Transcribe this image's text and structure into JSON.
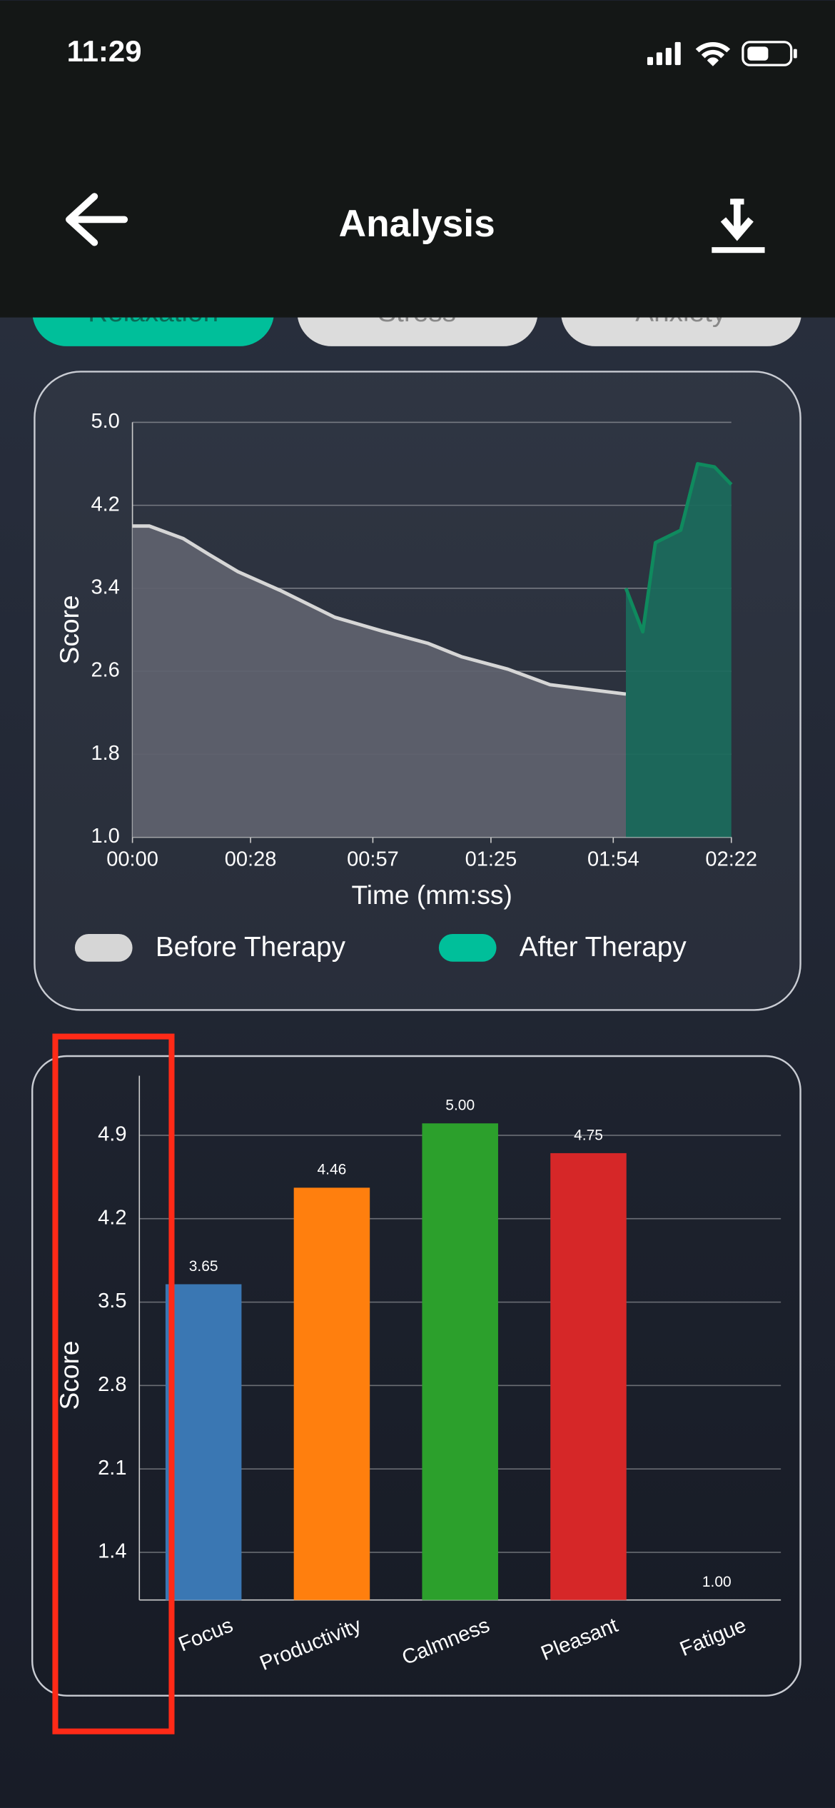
{
  "status_bar": {
    "time": "11:29"
  },
  "header": {
    "title": "Analysis"
  },
  "tabs": [
    "Relaxation",
    "Stress",
    "Anxiety"
  ],
  "chart_data": [
    {
      "type": "line",
      "xlabel": "Time (mm:ss)",
      "ylabel": "Score",
      "xlim": [
        0,
        142
      ],
      "ylim": [
        1,
        5
      ],
      "xticks": [
        {
          "value": 0,
          "label": "00:00"
        },
        {
          "value": 28,
          "label": "00:28"
        },
        {
          "value": 57,
          "label": "00:57"
        },
        {
          "value": 85,
          "label": "01:25"
        },
        {
          "value": 114,
          "label": "01:54"
        },
        {
          "value": 142,
          "label": "02:22"
        }
      ],
      "yticks": [
        {
          "value": 1,
          "label": "1.0"
        },
        1.8,
        2.6,
        3.4,
        4.2,
        {
          "value": 5,
          "label": "5.0"
        }
      ],
      "grid": true,
      "legend": "bottom",
      "series": [
        {
          "name": "Before Therapy",
          "color": "#d6d6d6",
          "fill": "#5e616d",
          "x": [
            0,
            4,
            12,
            18,
            25,
            35,
            48,
            59,
            70,
            78,
            89,
            99,
            117
          ],
          "values": [
            4.0,
            4.0,
            3.88,
            3.73,
            3.56,
            3.38,
            3.12,
            2.99,
            2.87,
            2.74,
            2.62,
            2.47,
            2.38
          ]
        },
        {
          "name": "After Therapy",
          "color": "#00bf9a",
          "fill": "#1b6a5c",
          "x": [
            117,
            121,
            124,
            130,
            134,
            138,
            142
          ],
          "values": [
            3.4,
            2.98,
            3.84,
            3.96,
            4.6,
            4.57,
            4.4
          ]
        }
      ]
    },
    {
      "type": "bar",
      "ylabel": "Score",
      "categories": [
        "Focus",
        "Productivity",
        "Calmness",
        "Pleasant",
        "Fatigue"
      ],
      "values": [
        3.65,
        4.46,
        5.0,
        4.75,
        1.0
      ],
      "value_labels": [
        "3.65",
        "4.46",
        "5.00",
        "4.75",
        "1.00"
      ],
      "colors": [
        "#3a77b3",
        "#ff7f0e",
        "#2ca02c",
        "#d62728",
        "#8c564b"
      ],
      "ylim": [
        1.0,
        5.4
      ],
      "yticks": [
        1.4,
        2.1,
        2.8,
        3.5,
        4.2,
        4.9
      ],
      "grid": true
    }
  ]
}
